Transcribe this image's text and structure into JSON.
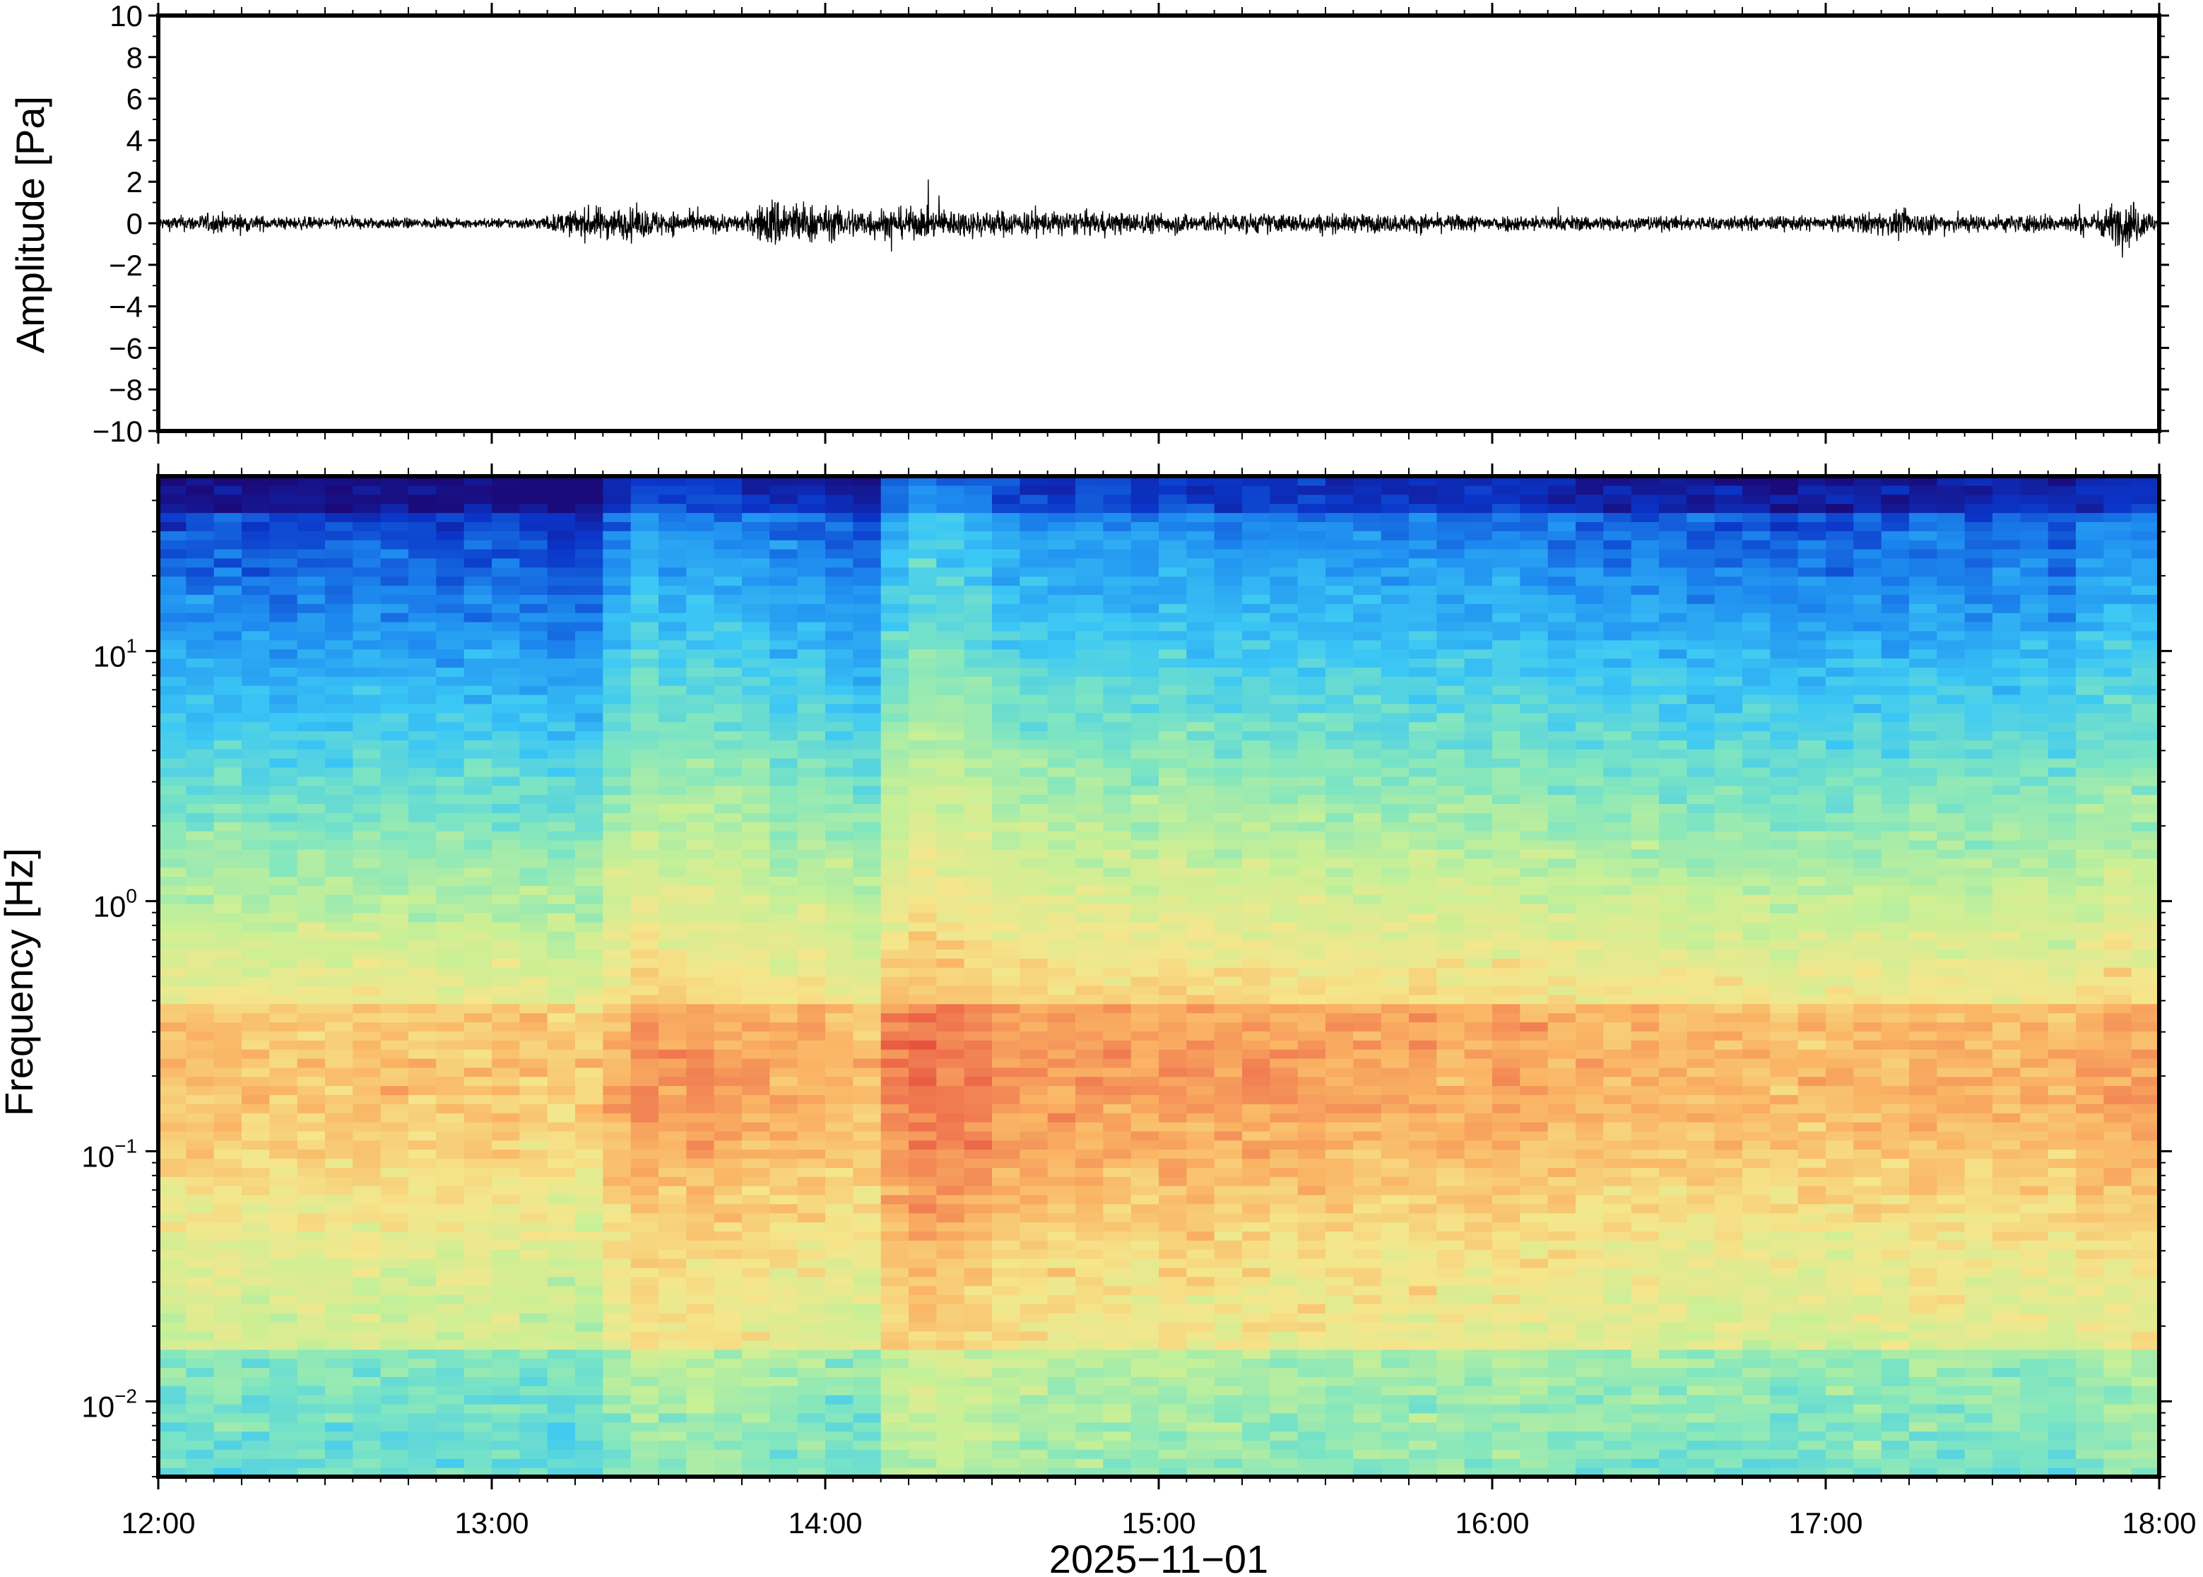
{
  "chart_data": [
    {
      "type": "line",
      "panel": "waveform",
      "ylabel": "Amplitude [Pa]",
      "ylim": [
        -10,
        10
      ],
      "yticks": [
        10,
        8,
        6,
        4,
        2,
        0,
        -2,
        -4,
        -6,
        -8,
        -10
      ],
      "ytick_labels": [
        "10",
        "8",
        "6",
        "4",
        "2",
        "0",
        "−2",
        "−4",
        "−6",
        "−8",
        "−10"
      ],
      "xlim_hours": [
        12,
        18
      ],
      "series": [
        {
          "envelope_hours": [
            12.0,
            12.2,
            12.35,
            12.6,
            12.9,
            13.15,
            13.3,
            13.45,
            13.6,
            13.75,
            13.85,
            14.0,
            14.3,
            14.6,
            15.0,
            15.5,
            16.0,
            16.5,
            17.0,
            17.2,
            17.5,
            17.8,
            17.9,
            18.0
          ],
          "envelope_pa": [
            0.3,
            0.5,
            0.3,
            0.3,
            0.2,
            0.3,
            0.8,
            0.7,
            0.5,
            0.4,
            1.3,
            0.8,
            0.7,
            0.6,
            0.5,
            0.45,
            0.4,
            0.35,
            0.35,
            0.6,
            0.4,
            0.5,
            1.2,
            0.4
          ]
        }
      ],
      "grid": false
    },
    {
      "type": "heatmap",
      "panel": "spectrogram",
      "ylabel": "Frequency [Hz]",
      "yscale": "log",
      "ylim_hz": [
        0.005,
        50
      ],
      "ytick_labels": [
        {
          "value": 10,
          "base": "10",
          "exp": "1"
        },
        {
          "value": 1,
          "base": "10",
          "exp": "0"
        },
        {
          "value": 0.1,
          "base": "10",
          "exp": "−1"
        },
        {
          "value": 0.01,
          "base": "10",
          "exp": "−2"
        }
      ],
      "xlabel": "2025−11−01",
      "xlim_hours": [
        12,
        18
      ],
      "xticks_hours": [
        12,
        13,
        14,
        15,
        16,
        17,
        18
      ],
      "xtick_labels": [
        "12:00",
        "13:00",
        "14:00",
        "15:00",
        "16:00",
        "17:00",
        "18:00"
      ],
      "colormap": [
        "#1a0a7a",
        "#0a35c8",
        "#1e8cf0",
        "#3cc8f5",
        "#80e6c0",
        "#c8f096",
        "#f5e68c",
        "#fab464",
        "#f07850",
        "#dc2828"
      ],
      "columns": 72,
      "column_energy": [
        0.1,
        0.12,
        0.15,
        0.1,
        0.08,
        0.12,
        0.1,
        0.15,
        0.12,
        0.1,
        0.08,
        0.12,
        0.1,
        0.05,
        0.0,
        0.0,
        0.35,
        0.55,
        0.45,
        0.5,
        0.45,
        0.4,
        0.3,
        0.35,
        0.2,
        0.15,
        0.65,
        0.8,
        0.75,
        0.7,
        0.55,
        0.5,
        0.45,
        0.5,
        0.45,
        0.4,
        0.5,
        0.45,
        0.4,
        0.45,
        0.4,
        0.42,
        0.38,
        0.4,
        0.35,
        0.4,
        0.38,
        0.35,
        0.4,
        0.35,
        0.3,
        0.28,
        0.25,
        0.3,
        0.25,
        0.2,
        0.25,
        0.22,
        0.15,
        0.2,
        0.18,
        0.25,
        0.2,
        0.3,
        0.28,
        0.22,
        0.25,
        0.3,
        0.2,
        0.35,
        0.45,
        0.4
      ],
      "grid": false
    }
  ]
}
